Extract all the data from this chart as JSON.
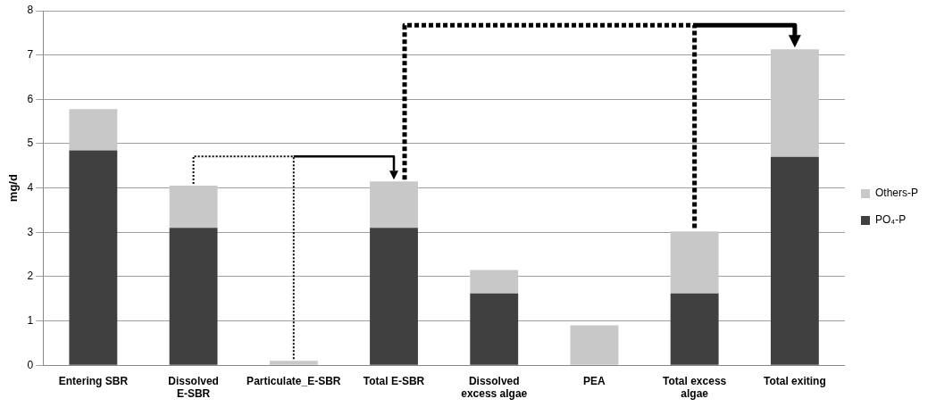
{
  "chart_data": {
    "type": "bar",
    "stacked": true,
    "ylabel": "mg/d",
    "categories": [
      "Entering SBR",
      "Dissolved E-SBR",
      "Particulate_E-SBR",
      "Total E-SBR",
      "Dissolved excess algae",
      "PEA",
      "Total excess algae",
      "Total exiting"
    ],
    "series": [
      {
        "name": "PO₄-P",
        "color": "#404040",
        "values": [
          4.85,
          3.1,
          0,
          3.1,
          1.62,
          0,
          1.62,
          4.7
        ]
      },
      {
        "name": "Others-P",
        "color": "#c8c8c8",
        "values": [
          0.93,
          0.95,
          0.1,
          1.05,
          0.53,
          0.9,
          1.4,
          2.43
        ]
      }
    ],
    "ylim": [
      0,
      8
    ],
    "yticks": [
      0,
      1,
      2,
      3,
      4,
      5,
      6,
      7,
      8
    ],
    "grid": "y",
    "legend": "right"
  }
}
